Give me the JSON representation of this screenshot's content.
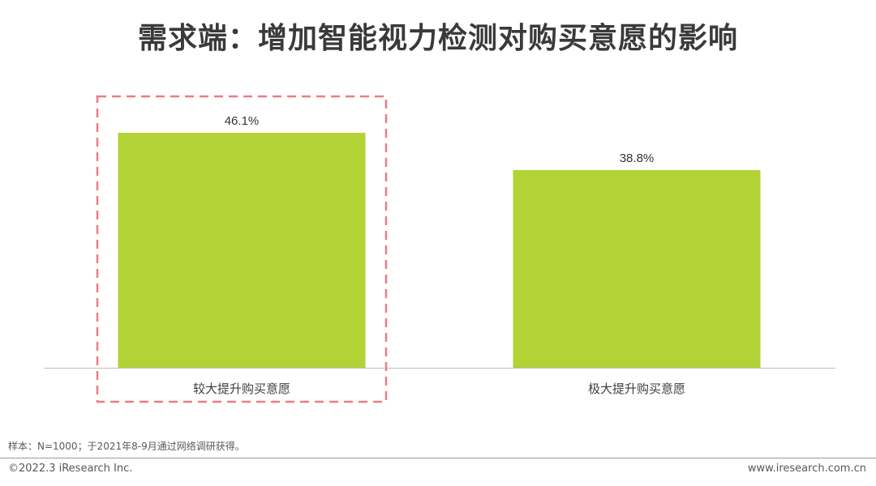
{
  "title": "需求端：增加智能视力检测对购买意愿的影响",
  "chart_data": {
    "type": "bar",
    "categories": [
      "较大提升购买意愿",
      "极大提升购买意愿"
    ],
    "values": [
      46.1,
      38.8
    ],
    "value_labels": [
      "46.1%",
      "38.8%"
    ],
    "ylim": [
      0,
      50
    ],
    "bar_color": "#b2d235",
    "highlight_color": "#ee7b84",
    "highlight_category": "较大提升购买意愿",
    "grid": false,
    "title": "",
    "xlabel": "",
    "ylabel": ""
  },
  "footnote": "样本：N=1000；于2021年8-9月通过网络调研获得。",
  "copyright": "©2022.3 iResearch Inc.",
  "website": "www.iresearch.com.cn"
}
